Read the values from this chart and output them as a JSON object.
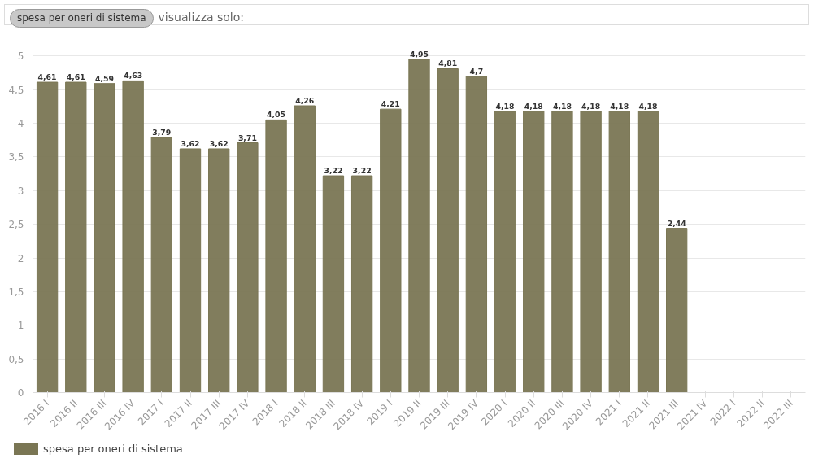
{
  "chart_data": {
    "type": "bar",
    "categories": [
      "2016 I",
      "2016 II",
      "2016 III",
      "2016 IV",
      "2017 I",
      "2017 II",
      "2017 III",
      "2017 IV",
      "2018 I",
      "2018 II",
      "2018 III",
      "2018 IV",
      "2019 I",
      "2019 II",
      "2019 III",
      "2019 IV",
      "2020 I",
      "2020 II",
      "2020 III",
      "2020 IV",
      "2021 I",
      "2021 II",
      "2021 III",
      "2021 IV",
      "2022 I",
      "2022 II",
      "2022 III"
    ],
    "series": [
      {
        "name": "spesa per oneri di sistema",
        "color": "#7a7654",
        "values": [
          4.61,
          4.61,
          4.59,
          4.63,
          3.79,
          3.62,
          3.62,
          3.71,
          4.05,
          4.26,
          3.22,
          3.22,
          4.21,
          4.95,
          4.81,
          4.7,
          4.18,
          4.18,
          4.18,
          4.18,
          4.18,
          4.18,
          2.44,
          null,
          null,
          null,
          null
        ],
        "value_labels": [
          "4,61",
          "4,61",
          "4,59",
          "4,63",
          "3,79",
          "3,62",
          "3,62",
          "3,71",
          "4,05",
          "4,26",
          "3,22",
          "3,22",
          "4,21",
          "4,95",
          "4,81",
          "4,7",
          "4,18",
          "4,18",
          "4,18",
          "4,18",
          "4,18",
          "4,18",
          "2,44",
          null,
          null,
          null,
          null
        ]
      }
    ],
    "ylim": [
      0,
      5.1
    ],
    "yticks": [
      0,
      {
        "value": 0.5,
        "label": "0,5"
      },
      1,
      {
        "value": 1.5,
        "label": "1,5"
      },
      2,
      {
        "value": 2.5,
        "label": "2,5"
      },
      3,
      {
        "value": 3.5,
        "label": "3,5"
      },
      4,
      {
        "value": 4.5,
        "label": "4,5"
      },
      5
    ],
    "grid": "y",
    "legend": "bottom left",
    "annotations": [
      "spesa per oneri di sistema",
      "visualizza solo:"
    ]
  }
}
